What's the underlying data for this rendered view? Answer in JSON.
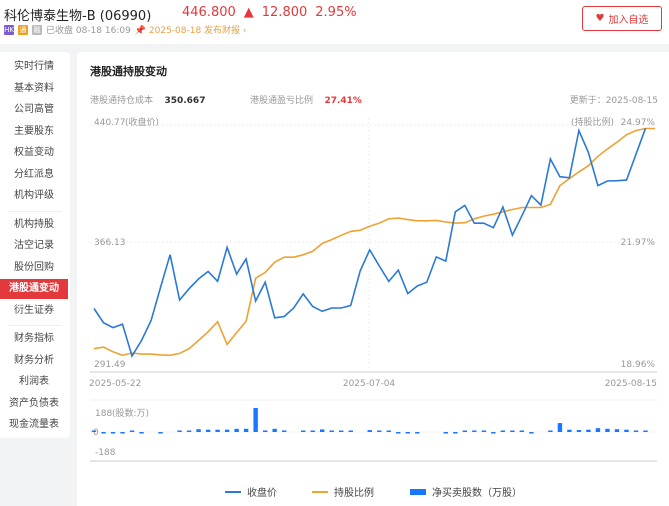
{
  "header": {
    "name": "科伦博泰生物-B",
    "code": "(06990)",
    "price": "446.800",
    "change": "12.800",
    "change_pct": "2.95%",
    "tags": [
      "HK",
      "通",
      "融"
    ],
    "status": "已收盘 08-18 16:09",
    "report": "2025-08-18 发布财报",
    "fav_label": "加入自选"
  },
  "colors": {
    "up": "#e4393c",
    "price_line": "#2b79d6",
    "holding_line": "#eea234",
    "bars": "#1677ff",
    "active": "#e4393c"
  },
  "sidebar": {
    "groups": [
      [
        "实时行情",
        "基本资料",
        "公司高管",
        "主要股东",
        "权益变动",
        "分红派息",
        "机构评级"
      ],
      [
        "机构持股",
        "沽空记录",
        "股份回购",
        "港股通变动",
        "衍生证券"
      ],
      [
        "财务指标",
        "财务分析",
        "利润表",
        "资产负债表",
        "现金流量表"
      ]
    ],
    "active": "港股通变动"
  },
  "main": {
    "title": "港股通持股变动",
    "cost_label": "港股通持仓成本",
    "cost": "350.667",
    "pl_label": "港股通盈亏比例",
    "pl": "27.41%",
    "updated": "更新于：2025-08-15"
  },
  "chart_data": {
    "type": "line",
    "x_ticks": [
      "2025-05-22",
      "2025-07-04",
      "2025-08-15"
    ],
    "left_axis": {
      "title": "(收盘价)",
      "ticks": [
        "440.77",
        "366.13",
        "291.49"
      ],
      "range": [
        291.49,
        440.77
      ]
    },
    "right_axis": {
      "title": "(持股比例)",
      "ticks": [
        "24.97%",
        "21.97%",
        "18.96%"
      ],
      "range": [
        18.96,
        24.97
      ]
    },
    "bar_axis": {
      "title": "(股数:万)",
      "ticks": [
        "188",
        "0",
        "-188"
      ],
      "range": [
        -188,
        188
      ]
    },
    "series": [
      {
        "name": "收盘价",
        "axis": "left",
        "values": [
          324.2,
          315.2,
          312.1,
          314.2,
          294.0,
          303.9,
          316.6,
          337.8,
          358.4,
          329.6,
          336.8,
          343.0,
          347.7,
          341.5,
          363.0,
          346.1,
          355.7,
          329.0,
          340.9,
          318.3,
          319.1,
          324.5,
          333.5,
          325.5,
          322.4,
          324.5,
          324.5,
          326.1,
          348.1,
          361.5,
          351.2,
          341.4,
          348.6,
          333.7,
          338.5,
          340.9,
          357.0,
          354.3,
          385.6,
          389.7,
          378.4,
          378.4,
          375.5,
          388.7,
          370.8,
          383.1,
          395.9,
          389.9,
          419.2,
          407.9,
          407.2,
          437.3,
          423.3,
          402.3,
          405.2,
          405.4,
          405.8,
          null,
          438.7,
          null
        ]
      },
      {
        "name": "持股比例",
        "axis": "right",
        "values": [
          19.25,
          19.29,
          19.17,
          19.08,
          19.14,
          19.11,
          19.11,
          19.09,
          19.08,
          19.13,
          19.25,
          19.46,
          19.68,
          19.94,
          19.36,
          19.66,
          19.95,
          21.05,
          21.2,
          21.46,
          21.59,
          21.59,
          21.65,
          21.74,
          21.94,
          22.04,
          22.15,
          22.25,
          22.28,
          22.38,
          22.46,
          22.57,
          22.59,
          22.55,
          22.52,
          22.52,
          22.53,
          22.49,
          22.46,
          22.47,
          22.57,
          22.64,
          22.69,
          22.75,
          22.81,
          22.86,
          22.86,
          22.86,
          22.94,
          23.42,
          23.6,
          23.77,
          23.93,
          24.17,
          24.36,
          24.53,
          24.72,
          24.83,
          24.88,
          24.88
        ]
      },
      {
        "name": "净买卖股数（万股）",
        "axis": "bar",
        "type": "bar",
        "values": [
          10,
          -5,
          -10,
          -8,
          5,
          -3,
          0,
          -3,
          0,
          3,
          8,
          22,
          18,
          18,
          18,
          25,
          25,
          188,
          12,
          25,
          12,
          0,
          3,
          8,
          20,
          8,
          8,
          8,
          0,
          15,
          5,
          10,
          -3,
          -5,
          -5,
          0,
          0,
          -5,
          -3,
          3,
          8,
          5,
          -3,
          3,
          3,
          3,
          -3,
          0,
          8,
          70,
          18,
          15,
          18,
          30,
          25,
          22,
          18,
          5,
          5,
          0
        ]
      }
    ],
    "legend": "bottom"
  }
}
